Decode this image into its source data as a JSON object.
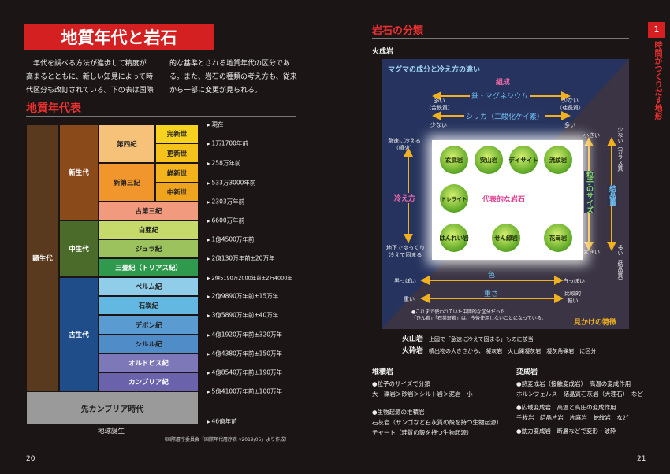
{
  "left_page": {
    "title": "地質年代と岩石",
    "intro": {
      "column1": [
        "　年代を調べる方法が進歩して精度が",
        "高まるとともに、新しい知見によって時",
        "代区分も改訂されている。下の表は国際"
      ],
      "column2": [
        "的な基準とされる地質年代の区分であ",
        "る。また、岩石の種類の考え方も、従来",
        "から一部に変更が見られる。"
      ]
    },
    "section_title": "地質年代表",
    "table": {
      "eon": "顕生代",
      "eras": [
        "新生代",
        "中生代",
        "古生代"
      ],
      "periods": [
        "第四紀",
        "新第三紀",
        "古第三紀",
        "白亜紀",
        "ジュラ紀",
        "三畳紀（トリアス紀）",
        "ペルム紀",
        "石炭紀",
        "デボン紀",
        "シルル紀",
        "オルドビス紀",
        "カンブリア紀"
      ],
      "epochs": [
        "完新世",
        "更新世",
        "鮮新世",
        "中新世"
      ],
      "precambrian": "先カンブリア時代",
      "origin": "地球誕生",
      "boundaries": [
        "現在",
        "1万1700年前",
        "258万年前",
        "533万3000年前",
        "2303万年前",
        "6600万年前",
        "1億4500万年前",
        "2億130万年前±20万年",
        "2億5190万2000年前±2万4000年",
        "2億9890万年前±15万年",
        "3億5890万年前±40万年",
        "4億1920万年前±320万年",
        "4億4380万年前±150万年",
        "4億8540万年前±190万年",
        "5億4100万年前±100万年",
        "46億年前"
      ]
    },
    "source": "（国際層序委員会「国際年代層序表 v2019/05」より作成）",
    "page_number": 20
  },
  "right_page": {
    "section_title": "岩石の分類",
    "tab_number": 1,
    "tab_title": "時間がつくりだす地形",
    "igneous_title": "火成岩",
    "diagram": {
      "title": "マグマの成分と冷え方の違い",
      "composition": "組成",
      "iron_magnesium": "鉄・マグネシウム",
      "iron_left": [
        "多い",
        "（苦鉄質）"
      ],
      "iron_right": [
        "少ない",
        "（珪長質）"
      ],
      "silica": "シリカ（二酸化ケイ素）",
      "silica_left": "少ない",
      "silica_right": "多い",
      "cooling": "冷え方",
      "cooling_top": [
        "急速に冷える",
        "（噴火）"
      ],
      "cooling_bottom": [
        "地下でゆっくり",
        "冷えて固まる"
      ],
      "rocks": [
        "玄武岩",
        "安山岩",
        "デイサイト",
        "流紋岩",
        "ドレライト",
        "はんれい岩",
        "せん緑岩",
        "花崗岩"
      ],
      "center_label": "代表的な岩石",
      "particle": "粒子のサイズ",
      "particle_top": "小さい",
      "particle_bottom": "大きい",
      "crystal": "結晶量",
      "crystal_top": "少ない（ガラス質）",
      "crystal_bottom": "多い（結晶質）",
      "color": "色",
      "color_left": "黒っぽい",
      "color_right": "白っぽい",
      "weight": "重さ",
      "weight_left": "重い",
      "weight_right": [
        "比較的",
        "軽い"
      ],
      "note": [
        "●これまで使われていた中間的な区分だった",
        "「ひん岩」「石英斑岩」は、今後使用しないことになっている。"
      ],
      "appearance": "見かけの特徴"
    },
    "volcanic": {
      "label": "火山岩",
      "text": "上図で「急速に冷えて固まる」ものに該当"
    },
    "pyroclastic": {
      "label": "火砕岩",
      "text": "噴出物の大きさから、 凝灰岩　火山礫凝灰岩　凝灰角礫岩　に区分"
    },
    "sedimentary": {
      "title": "堆積岩",
      "lines": [
        "●粒子のサイズで分類",
        "大　礫岩＞砂岩＞シルト岩＞泥岩　小",
        "●生物起源の堆積岩",
        "石灰岩（サンゴなど石灰質の殻を持つ生物起源）",
        "チャート（珪質の殻を持つ生物起源）"
      ]
    },
    "metamorphic": {
      "title": "変成岩",
      "lines": [
        "●熱変成岩（接触変成岩）　高温の変成作用",
        "ホルンフェルス　結晶質石灰岩（大理石）　など",
        "●広域変成岩　高温と高圧の変成作用",
        "千枚岩　結晶片岩　片麻岩　蛇紋岩　など",
        "●動力変成岩　断層などで変形・破砕"
      ]
    },
    "page_number": 21
  }
}
